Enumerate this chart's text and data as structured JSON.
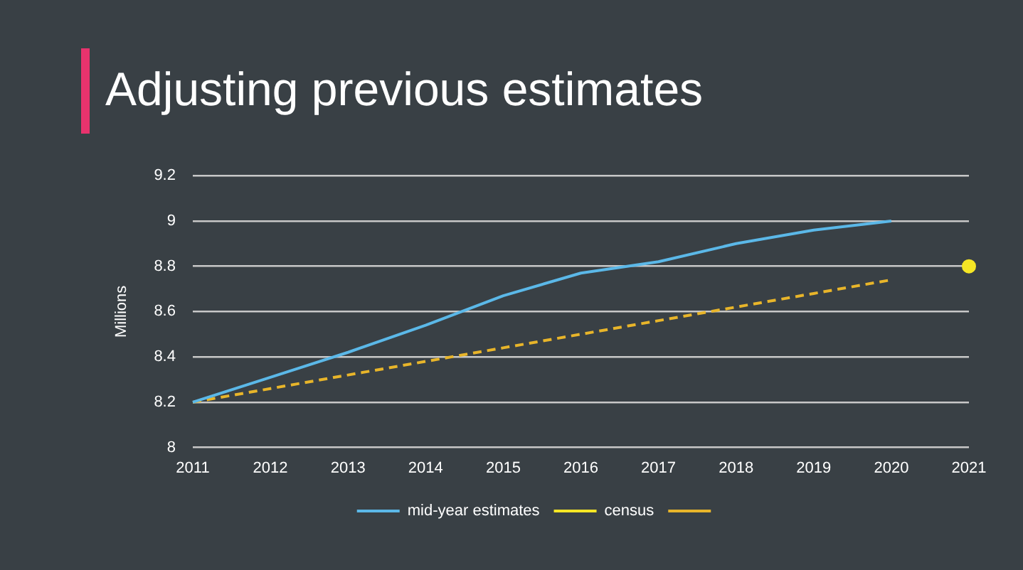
{
  "chart_data": {
    "type": "line",
    "title": "Adjusting previous estimates",
    "ylabel": "Millions",
    "categories": [
      "2011",
      "2012",
      "2013",
      "2014",
      "2015",
      "2016",
      "2017",
      "2018",
      "2019",
      "2020",
      "2021"
    ],
    "series": [
      {
        "name": "mid-year estimates",
        "color": "#5bb8e8",
        "values": [
          8.2,
          8.31,
          8.42,
          8.54,
          8.67,
          8.77,
          8.82,
          8.9,
          8.96,
          9.0,
          null
        ],
        "marker": "none",
        "line_style": "solid"
      },
      {
        "name": "census",
        "type": "scatter",
        "color": "#f5e625",
        "values": [
          null,
          null,
          null,
          null,
          null,
          null,
          null,
          null,
          null,
          null,
          8.8
        ],
        "marker": "circle"
      },
      {
        "color": "#e8b52a",
        "values": [
          8.2,
          8.26,
          8.32,
          8.38,
          8.44,
          8.5,
          8.56,
          8.62,
          8.68,
          8.74,
          null
        ],
        "marker": "none",
        "line_style": "dashed"
      }
    ],
    "ylim": [
      8,
      9.2
    ],
    "yticks": [
      8,
      8.2,
      8.4,
      8.6,
      8.8,
      9,
      9.2
    ],
    "grid": "y",
    "legend": "bottom"
  }
}
